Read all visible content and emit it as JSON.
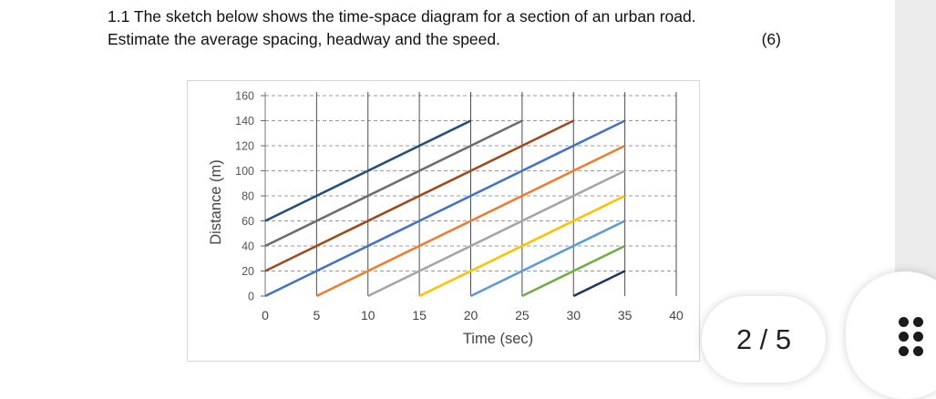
{
  "question": {
    "line1": "1.1 The sketch below shows the time-space diagram for a section of an urban road.",
    "line2": "Estimate the average spacing, headway and the speed.",
    "marks": "(6)"
  },
  "chart_data": {
    "type": "line",
    "title": "",
    "xlabel": "Time (sec)",
    "ylabel": "Distance (m)",
    "xlim": [
      0,
      40
    ],
    "ylim": [
      0,
      160
    ],
    "x_ticks": [
      "0",
      "5",
      "10",
      "15",
      "20",
      "25",
      "30",
      "35",
      "40"
    ],
    "y_ticks": [
      "0",
      "20",
      "40",
      "60",
      "80",
      "100",
      "120",
      "140",
      "160"
    ],
    "grid": "dashed",
    "legend": "none",
    "series": [
      {
        "color": "#264f78",
        "x": [
          0,
          20
        ],
        "y": [
          60,
          140
        ]
      },
      {
        "color": "#6d6d6d",
        "x": [
          0,
          25
        ],
        "y": [
          40,
          140
        ]
      },
      {
        "color": "#9e4a1b",
        "x": [
          0,
          30
        ],
        "y": [
          20,
          140
        ]
      },
      {
        "color": "#4472c4",
        "x": [
          0,
          35
        ],
        "y": [
          0,
          140
        ]
      },
      {
        "color": "#ed7d31",
        "x": [
          5,
          35
        ],
        "y": [
          0,
          120
        ]
      },
      {
        "color": "#a5a5a5",
        "x": [
          10,
          35
        ],
        "y": [
          0,
          100
        ]
      },
      {
        "color": "#ffc000",
        "x": [
          15,
          35
        ],
        "y": [
          0,
          80
        ]
      },
      {
        "color": "#5b9bd5",
        "x": [
          20,
          35
        ],
        "y": [
          0,
          60
        ]
      },
      {
        "color": "#70ad47",
        "x": [
          25,
          35
        ],
        "y": [
          0,
          40
        ]
      },
      {
        "color": "#203864",
        "x": [
          30,
          35
        ],
        "y": [
          0,
          20
        ]
      }
    ]
  },
  "pager": {
    "text": "2 / 5"
  },
  "icons": {
    "menu": "more-dots-icon"
  }
}
